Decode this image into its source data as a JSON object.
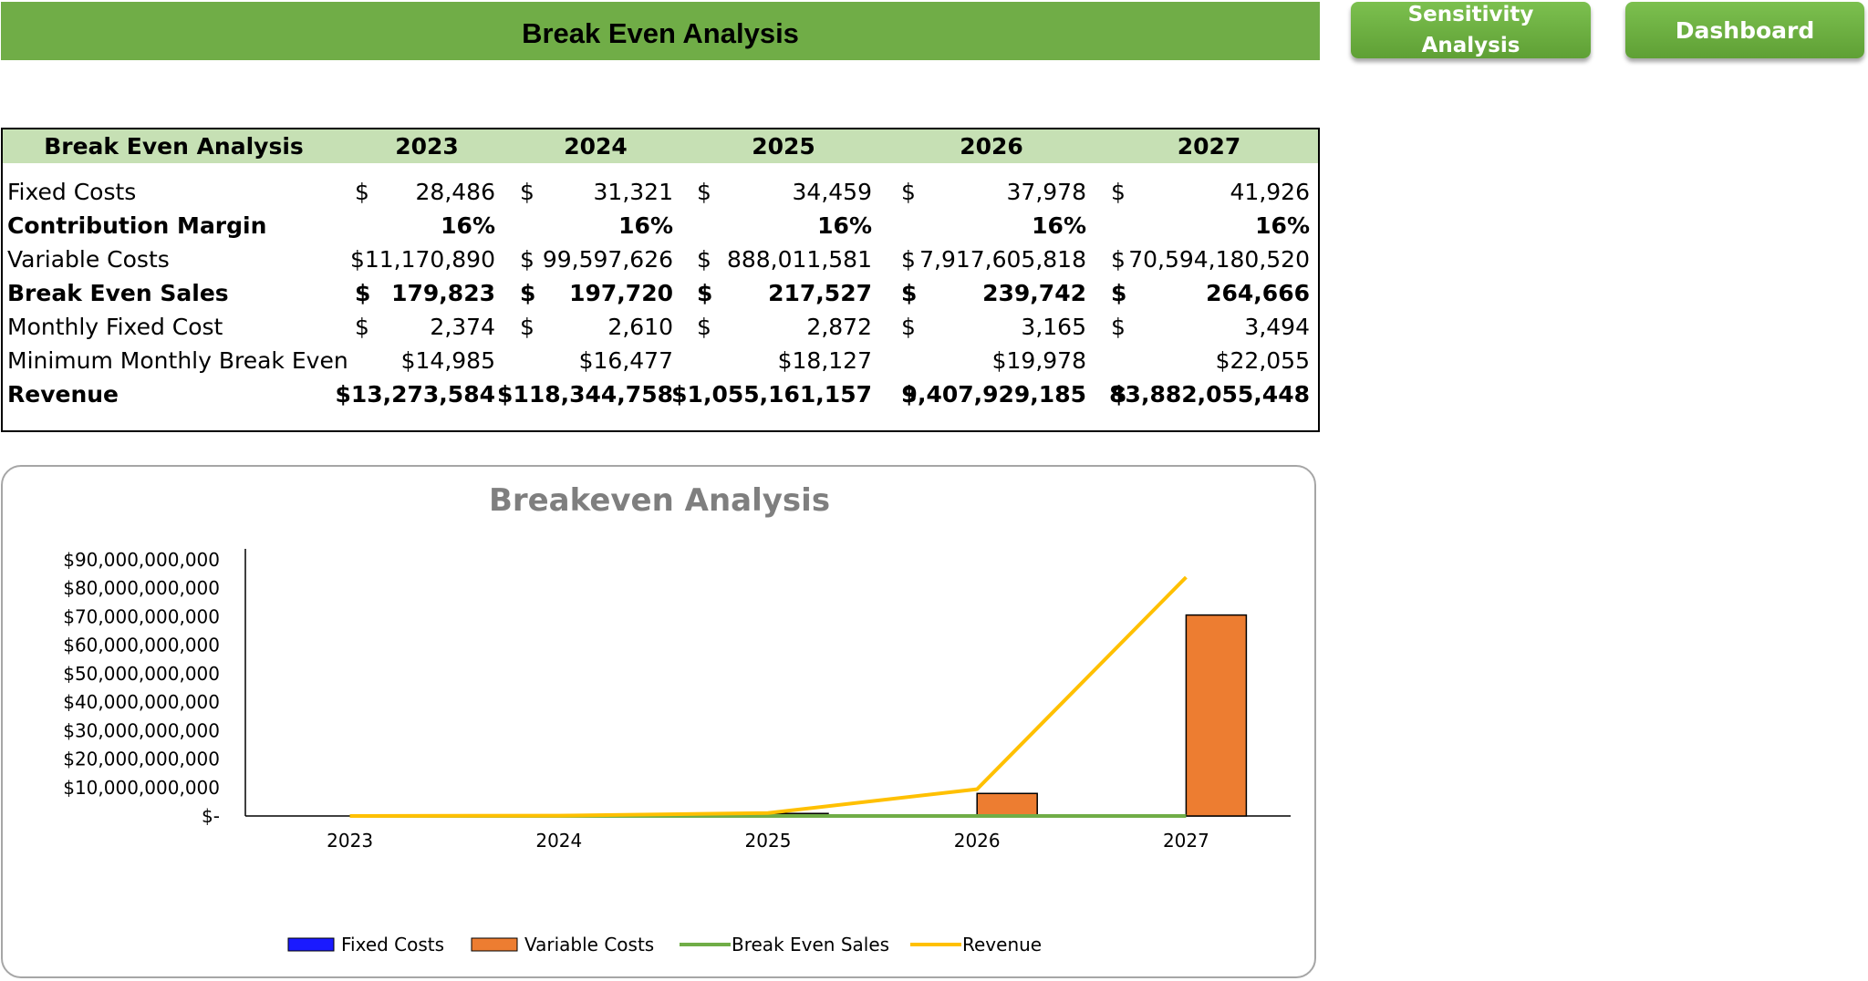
{
  "header": {
    "title": "Break Even Analysis",
    "buttons": {
      "sensitivity_line1": "Sensitivity",
      "sensitivity_line2": "Analysis",
      "dashboard": "Dashboard"
    }
  },
  "table": {
    "header_label": "Break Even Analysis",
    "years": [
      "2023",
      "2024",
      "2025",
      "2026",
      "2027"
    ],
    "rows": [
      {
        "label": "Fixed Costs",
        "bold": false,
        "cells": [
          {
            "d": "$",
            "v": "28,486"
          },
          {
            "d": "$",
            "v": "31,321"
          },
          {
            "d": "$",
            "v": "34,459"
          },
          {
            "d": "$",
            "v": "37,978"
          },
          {
            "d": "$",
            "v": "41,926"
          }
        ]
      },
      {
        "label": "Contribution Margin",
        "bold": true,
        "cells": [
          {
            "d": "",
            "v": "16%"
          },
          {
            "d": "",
            "v": "16%"
          },
          {
            "d": "",
            "v": "16%"
          },
          {
            "d": "",
            "v": "16%"
          },
          {
            "d": "",
            "v": "16%"
          }
        ]
      },
      {
        "label": "Variable Costs",
        "bold": false,
        "cells": [
          {
            "d": "",
            "v": "$11,170,890"
          },
          {
            "d": "$",
            "v": "99,597,626"
          },
          {
            "d": "$",
            "v": "888,011,581"
          },
          {
            "d": "$",
            "v": "7,917,605,818"
          },
          {
            "d": "$",
            "v": "70,594,180,520"
          }
        ]
      },
      {
        "label": "Break Even Sales",
        "bold": true,
        "cells": [
          {
            "d": "$",
            "v": "179,823"
          },
          {
            "d": "$",
            "v": "197,720"
          },
          {
            "d": "$",
            "v": "217,527"
          },
          {
            "d": "$",
            "v": "239,742"
          },
          {
            "d": "$",
            "v": "264,666"
          }
        ]
      },
      {
        "label": "Monthly Fixed Cost",
        "bold": false,
        "cells": [
          {
            "d": "$",
            "v": "2,374"
          },
          {
            "d": "$",
            "v": "2,610"
          },
          {
            "d": "$",
            "v": "2,872"
          },
          {
            "d": "$",
            "v": "3,165"
          },
          {
            "d": "$",
            "v": "3,494"
          }
        ]
      },
      {
        "label": "Minimum Monthly Break Even",
        "bold": false,
        "cells": [
          {
            "d": "",
            "v": "$14,985"
          },
          {
            "d": "",
            "v": "$16,477"
          },
          {
            "d": "",
            "v": "$18,127"
          },
          {
            "d": "",
            "v": "$19,978"
          },
          {
            "d": "",
            "v": "$22,055"
          }
        ]
      },
      {
        "label": "Revenue",
        "bold": true,
        "cells": [
          {
            "d": "",
            "v": "$13,273,584"
          },
          {
            "d": "",
            "v": "$118,344,758"
          },
          {
            "d": "",
            "v": "$1,055,161,157"
          },
          {
            "d": "$",
            "v": "9,407,929,185"
          },
          {
            "d": "$",
            "v": "83,882,055,448"
          }
        ]
      }
    ]
  },
  "chart_data": {
    "type": "bar",
    "title": "Breakeven Analysis",
    "categories": [
      "2023",
      "2024",
      "2025",
      "2026",
      "2027"
    ],
    "ylim": [
      0,
      90000000000
    ],
    "yticks": [
      "$-",
      "$10,000,000,000",
      "$20,000,000,000",
      "$30,000,000,000",
      "$40,000,000,000",
      "$50,000,000,000",
      "$60,000,000,000",
      "$70,000,000,000",
      "$80,000,000,000",
      "$90,000,000,000"
    ],
    "series": [
      {
        "name": "Fixed Costs",
        "kind": "bar",
        "color": "#1a1aff",
        "values": [
          28486,
          31321,
          34459,
          37978,
          41926
        ]
      },
      {
        "name": "Variable Costs",
        "kind": "bar",
        "color": "#ed7d31",
        "values": [
          11170890,
          99597626,
          888011581,
          7917605818,
          70594180520
        ]
      },
      {
        "name": "Break Even Sales",
        "kind": "line",
        "color": "#70ad47",
        "values": [
          179823,
          197720,
          217527,
          239742,
          264666
        ]
      },
      {
        "name": "Revenue",
        "kind": "line",
        "color": "#ffc000",
        "values": [
          13273584,
          118344758,
          1055161157,
          9407929185,
          83882055448
        ]
      }
    ],
    "legend_position": "bottom"
  }
}
